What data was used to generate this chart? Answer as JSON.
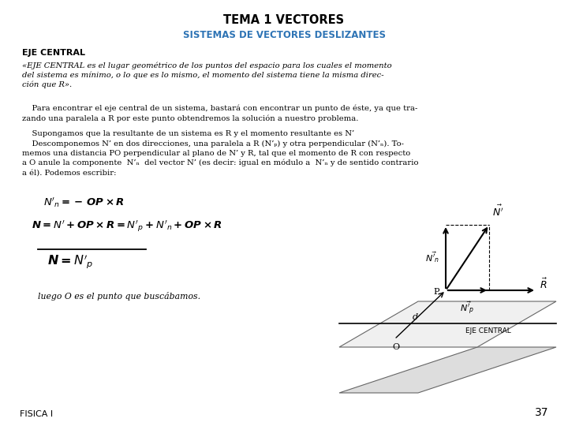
{
  "title": "TEMA 1 VECTORES",
  "subtitle": "SISTEMAS DE VECTORES DESLIZANTES",
  "title_color": "#000000",
  "subtitle_color": "#2e74b5",
  "section_header": "EJE CENTRAL",
  "bg_color": "#ffffff",
  "page_number": "37",
  "fisica_label": "FISICA I"
}
